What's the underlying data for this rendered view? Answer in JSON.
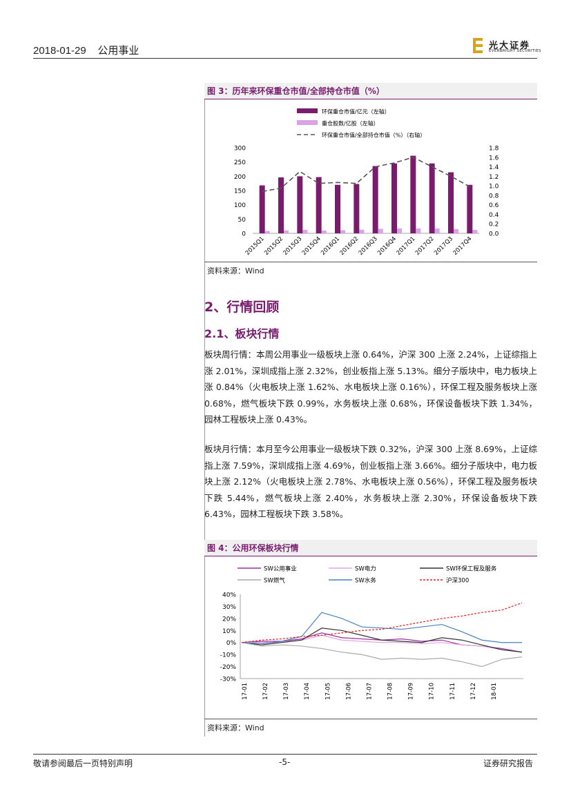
{
  "header": {
    "date": "2018-01-29",
    "sector": "公用事业",
    "logo_cn": "光大证券",
    "logo_en": "EVERBRIGHT SECURITIES"
  },
  "figure3": {
    "title": "图 3：历年来环保重仓市值/全部持仓市值（%）",
    "source": "资料来源：Wind",
    "chart_data": {
      "type": "bar",
      "categories": [
        "2015Q1",
        "2015Q2",
        "2015Q3",
        "2015Q4",
        "2016Q1",
        "2016Q2",
        "2016Q3",
        "2016Q4",
        "2017Q1",
        "2017Q2",
        "2017Q3",
        "2017Q4"
      ],
      "series": [
        {
          "name": "环保重仓市值/亿元（左轴）",
          "type": "bar",
          "axis": "left",
          "color": "#7a1c6e",
          "values": [
            168,
            196,
            200,
            197,
            170,
            173,
            236,
            245,
            272,
            245,
            214,
            170
          ]
        },
        {
          "name": "重仓股数/亿股（左轴）",
          "type": "bar",
          "axis": "left",
          "color": "#d9a3e8",
          "values": [
            8,
            10,
            12,
            10,
            11,
            13,
            16,
            17,
            17,
            17,
            15,
            12
          ]
        },
        {
          "name": "环保重仓市值/全部持仓市值（%）（右轴）",
          "type": "line",
          "axis": "right",
          "color": "#555555",
          "values": [
            0.88,
            0.95,
            1.3,
            1.05,
            1.07,
            1.05,
            1.4,
            1.48,
            1.6,
            1.4,
            1.2,
            0.98
          ]
        }
      ],
      "yticks_left": [
        "0",
        "50",
        "100",
        "150",
        "200",
        "250",
        "300"
      ],
      "yticks_right": [
        "0.0",
        "0.2",
        "0.4",
        "0.6",
        "0.8",
        "1.0",
        "1.2",
        "1.4",
        "1.6",
        "1.8"
      ],
      "ylim_left": [
        0,
        300
      ],
      "ylim_right": [
        0,
        1.8
      ],
      "legend_position": "top"
    }
  },
  "section2": {
    "title": "2、行情回顾",
    "sub": "2.1、板块行情"
  },
  "para1": "板块周行情：本周公用事业一级板块上涨 0.64%，沪深 300 上涨 2.24%，上证综指上涨 2.01%，深圳成指上涨 2.32%，创业板指上涨 5.13%。细分子版块中，电力板块上涨 0.84%（火电板块上涨 1.62%、水电板块上涨 0.16%），环保工程及服务板块上涨 0.68%，燃气板块下跌 0.99%，水务板块上涨 0.68%，环保设备板块下跌 1.34%，园林工程板块上涨 0.43%。",
  "para2": "板块月行情：本月至今公用事业一级板块下跌 0.32%，沪深 300 上涨 8.69%，上证综指上涨 7.59%，深圳成指上涨 4.69%，创业板指上涨 3.66%。细分子版块中，电力板块上涨 2.12%（火电板块上涨 2.78%、水电板块上涨 0.56%），环保工程及服务板块下跌 5.44%，燃气板块上涨 2.40%，水务板块上涨 2.30%，环保设备板块下跌 6.43%，园林工程板块下跌 3.58%。",
  "figure4": {
    "title": "图 4：公用环保板块行情",
    "source": "资料来源：Wind",
    "chart_data": {
      "type": "line",
      "x_ticks": [
        "17-01",
        "17-02",
        "17-03",
        "17-04",
        "17-05",
        "17-06",
        "17-07",
        "17-08",
        "17-09",
        "17-10",
        "17-11",
        "17-12",
        "18-01"
      ],
      "yticks": [
        "40%",
        "30%",
        "20%",
        "10%",
        "0%",
        "-10%",
        "-20%",
        "-30%"
      ],
      "ylim": [
        -0.3,
        0.4
      ],
      "series": [
        {
          "name": "SW公用事业",
          "color": "#9c2fa0",
          "dash": "",
          "values": [
            0,
            0.01,
            0.01,
            0.03,
            0.08,
            0.04,
            0.03,
            0.02,
            0.03,
            0.01,
            0.02,
            -0.02,
            -0.03,
            -0.05,
            -0.08
          ]
        },
        {
          "name": "SW电力",
          "color": "#e3a6e0",
          "dash": "",
          "values": [
            0,
            0.0,
            0.0,
            0.02,
            0.06,
            0.02,
            0.01,
            0.0,
            0.0,
            -0.01,
            0.0,
            -0.02,
            -0.03,
            -0.06,
            -0.08
          ]
        },
        {
          "name": "SW环保工程及服务",
          "color": "#333333",
          "dash": "",
          "values": [
            0,
            -0.02,
            0.0,
            0.02,
            0.12,
            0.1,
            0.06,
            0.02,
            0.01,
            0.0,
            0.04,
            0.02,
            -0.02,
            -0.06,
            -0.08
          ]
        },
        {
          "name": "SW燃气",
          "color": "#aaaaaa",
          "dash": "",
          "values": [
            0,
            -0.03,
            -0.02,
            -0.03,
            -0.05,
            -0.08,
            -0.1,
            -0.14,
            -0.13,
            -0.14,
            -0.13,
            -0.16,
            -0.2,
            -0.14,
            -0.12
          ]
        },
        {
          "name": "SW水务",
          "color": "#4a7fc1",
          "dash": "",
          "values": [
            0,
            -0.01,
            0.01,
            0.05,
            0.25,
            0.2,
            0.13,
            0.12,
            0.11,
            0.13,
            0.15,
            0.09,
            0.02,
            0.0,
            0.0
          ]
        },
        {
          "name": "沪深300",
          "color": "#e02020",
          "dash": "3,2",
          "values": [
            0,
            0.02,
            0.03,
            0.05,
            0.06,
            0.08,
            0.1,
            0.11,
            0.14,
            0.17,
            0.2,
            0.22,
            0.25,
            0.27,
            0.33
          ]
        }
      ]
    }
  },
  "footer": {
    "left": "敬请参阅最后一页特别声明",
    "center": "-5-",
    "right": "证券研究报告"
  }
}
